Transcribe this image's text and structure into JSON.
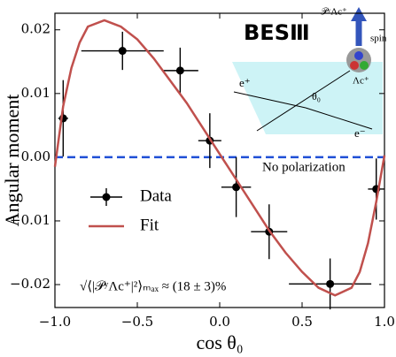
{
  "chart_data": {
    "type": "errorbar",
    "xlabel": "cos θ₀",
    "ylabel": "Angular moment",
    "xlim": [
      -1.0,
      1.0
    ],
    "ylim": [
      -0.0236,
      0.0226
    ],
    "xticks": [
      {
        "value": -1.0,
        "label": "−1.0"
      },
      {
        "value": -0.5,
        "label": "−0.5"
      },
      {
        "value": 0.0,
        "label": "0.0"
      },
      {
        "value": 0.5,
        "label": "0.5"
      },
      {
        "value": 1.0,
        "label": "1.0"
      }
    ],
    "yticks": [
      {
        "value": -0.02,
        "label": "−0.02"
      },
      {
        "value": -0.01,
        "label": "−0.01"
      },
      {
        "value": 0.0,
        "label": "0.00"
      },
      {
        "value": 0.01,
        "label": "0.01"
      },
      {
        "value": 0.02,
        "label": "0.02"
      }
    ],
    "reference_line": {
      "value": 0.0,
      "label": "No polarization",
      "color": "#1f4fd6"
    },
    "series": [
      {
        "name": "Data",
        "kind": "errorbar",
        "color": "#000000",
        "x": [
          -0.95,
          -0.59,
          -0.24,
          -0.06,
          0.1,
          0.3,
          0.67,
          0.95
        ],
        "xerr": [
          0.03,
          0.25,
          0.11,
          0.07,
          0.09,
          0.11,
          0.25,
          0.05
        ],
        "values": [
          0.0061,
          0.0167,
          0.0136,
          0.0026,
          -0.0047,
          -0.0117,
          -0.0199,
          -0.005
        ],
        "yerr": [
          0.006,
          0.003,
          0.0036,
          0.0043,
          0.0047,
          0.0043,
          0.004,
          0.0048
        ]
      },
      {
        "name": "Fit",
        "kind": "line",
        "color": "#c0504d",
        "x": [
          -1.0,
          -0.95,
          -0.9,
          -0.85,
          -0.8,
          -0.7,
          -0.6,
          -0.5,
          -0.4,
          -0.3,
          -0.2,
          -0.1,
          0.0,
          0.1,
          0.2,
          0.3,
          0.4,
          0.5,
          0.6,
          0.7,
          0.8,
          0.85,
          0.9,
          0.95,
          1.0
        ],
        "values": [
          -0.0015,
          0.008,
          0.014,
          0.018,
          0.0205,
          0.0215,
          0.0205,
          0.0185,
          0.0155,
          0.012,
          0.0085,
          0.0045,
          0.0005,
          -0.0035,
          -0.0075,
          -0.0115,
          -0.015,
          -0.018,
          -0.0205,
          -0.0217,
          -0.0205,
          -0.018,
          -0.0135,
          -0.007,
          0.0003
        ]
      }
    ],
    "annotations": {
      "logo": "BESⅢ",
      "formula": "√⟨|𝒫ʸΛc⁺|²⟩ₘₐₓ ≈ (18 ± 3)%",
      "e_plus": "e⁺",
      "e_minus": "e⁻",
      "theta": "θ₀",
      "lambda": "Λc⁺",
      "spin": "spin",
      "polarization": "𝒫ʸΛc⁺"
    }
  }
}
